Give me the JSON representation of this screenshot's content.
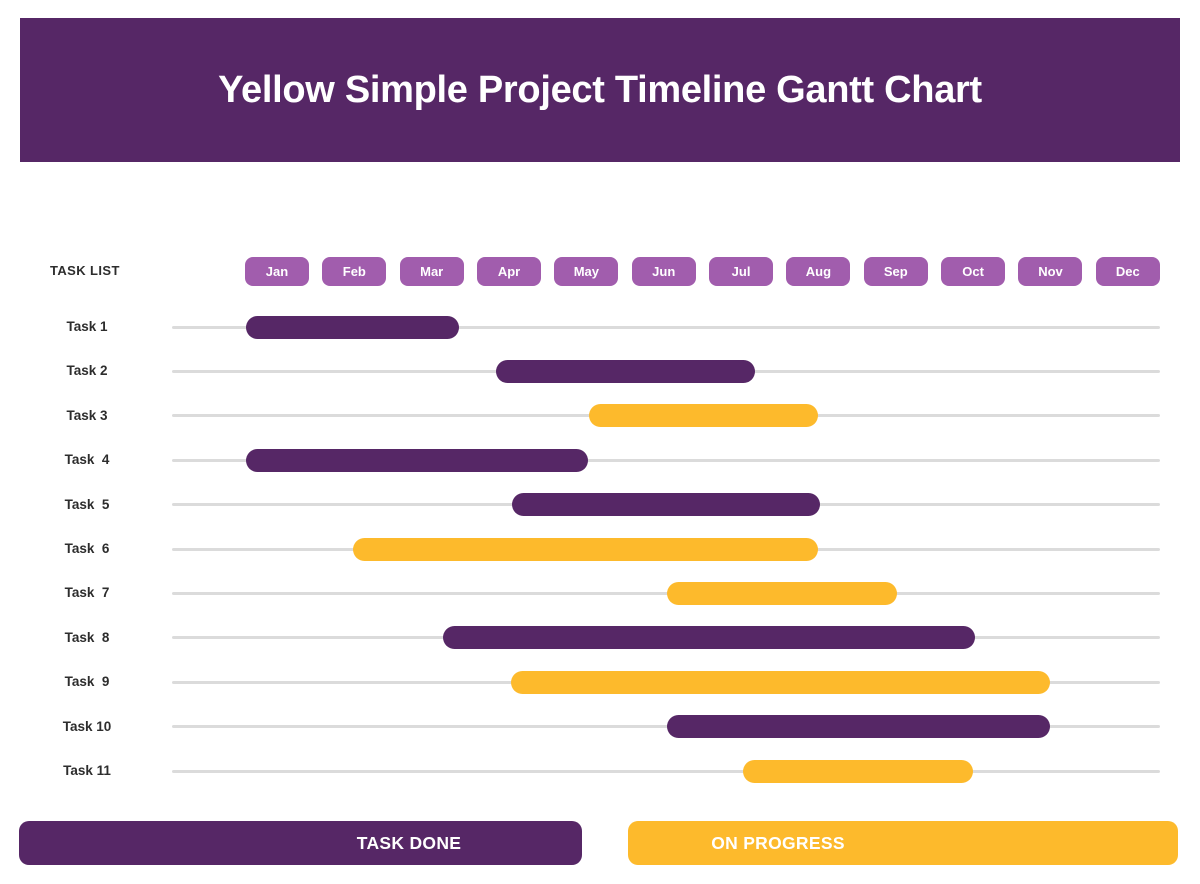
{
  "header": {
    "title": "Yellow Simple Project Timeline Gantt Chart"
  },
  "timeline": {
    "task_list_label": "TASK LIST",
    "months": [
      "Jan",
      "Feb",
      "Mar",
      "Apr",
      "May",
      "Jun",
      "Jul",
      "Aug",
      "Sep",
      "Oct",
      "Nov",
      "Dec"
    ]
  },
  "legend": {
    "done_label": "TASK DONE",
    "progress_label": "ON PROGRESS"
  },
  "colors": {
    "header_bg": "#562766",
    "done_bar": "#562766",
    "progress_bar": "#FDBA2C",
    "month_pill": "#A15DAD",
    "track_line": "#DBDBDB",
    "title_text": "#FFFFFF",
    "label_text": "#2D2D2D",
    "background": "#FFFFFF"
  },
  "chart_data": {
    "type": "gantt",
    "title": "Yellow Simple Project Timeline Gantt Chart",
    "x_axis": {
      "unit": "month",
      "categories": [
        "Jan",
        "Feb",
        "Mar",
        "Apr",
        "May",
        "Jun",
        "Jul",
        "Aug",
        "Sep",
        "Oct",
        "Nov",
        "Dec"
      ],
      "range_months": [
        0,
        12
      ]
    },
    "legend": [
      {
        "label": "TASK DONE",
        "status": "done",
        "color": "#562766"
      },
      {
        "label": "ON PROGRESS",
        "status": "progress",
        "color": "#FDBA2C"
      }
    ],
    "tasks": [
      {
        "name": "Task 1",
        "status": "done",
        "start_month": 0.1,
        "end_month": 2.85
      },
      {
        "name": "Task 2",
        "status": "done",
        "start_month": 3.33,
        "end_month": 6.68
      },
      {
        "name": "Task 3",
        "status": "progress",
        "start_month": 4.53,
        "end_month": 7.5
      },
      {
        "name": "Task  4",
        "status": "done",
        "start_month": 0.1,
        "end_month": 4.52
      },
      {
        "name": "Task  5",
        "status": "done",
        "start_month": 3.54,
        "end_month": 7.52
      },
      {
        "name": "Task  6",
        "status": "progress",
        "start_month": 1.48,
        "end_month": 7.5
      },
      {
        "name": "Task  7",
        "status": "progress",
        "start_month": 5.54,
        "end_month": 8.52
      },
      {
        "name": "Task  8",
        "status": "done",
        "start_month": 2.64,
        "end_month": 9.52
      },
      {
        "name": "Task  9",
        "status": "progress",
        "start_month": 3.52,
        "end_month": 10.49
      },
      {
        "name": "Task 10",
        "status": "done",
        "start_month": 5.54,
        "end_month": 10.49
      },
      {
        "name": "Task 11",
        "status": "progress",
        "start_month": 6.53,
        "end_month": 9.5
      }
    ]
  }
}
